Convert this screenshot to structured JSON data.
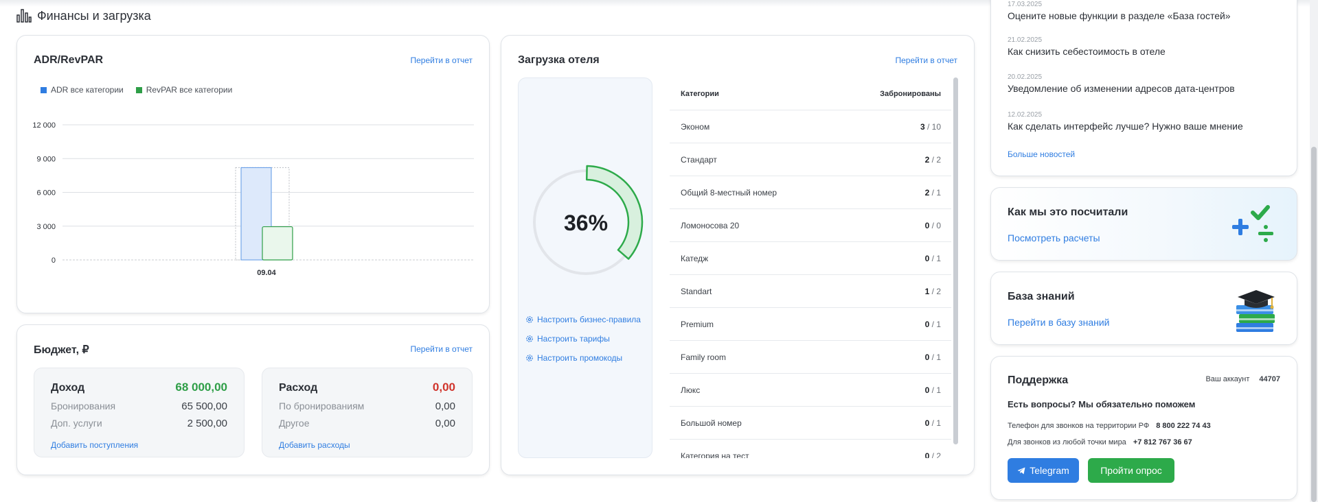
{
  "section": {
    "title": "Финансы и загрузка",
    "icon": "bar-chart-icon"
  },
  "adr": {
    "title": "ADR/RevPAR",
    "link": "Перейти в отчет",
    "legend": [
      {
        "label": "ADR все категории",
        "color": "#2f7de1"
      },
      {
        "label": "RevPAR все категории",
        "color": "#2e9e47"
      }
    ]
  },
  "chart_data": {
    "type": "bar",
    "title": "ADR/RevPAR",
    "categories": [
      "09.04"
    ],
    "series": [
      {
        "name": "ADR все категории",
        "values": [
          8200
        ],
        "color": "#2f7de1"
      },
      {
        "name": "RevPAR все категории",
        "values": [
          2950
        ],
        "color": "#2e9e47"
      }
    ],
    "y_ticks": [
      "0",
      "3 000",
      "6 000",
      "9 000",
      "12 000"
    ],
    "ylim": [
      0,
      12000
    ],
    "grid": true,
    "legend": "top-left"
  },
  "budget": {
    "title": "Бюджет, ₽",
    "link": "Перейти в отчет",
    "income": {
      "title": "Доход",
      "total": "68 000,00",
      "rows": [
        {
          "label": "Бронирования",
          "value": "65 500,00"
        },
        {
          "label": "Доп. услуги",
          "value": "2 500,00"
        }
      ],
      "link": "Добавить поступления",
      "color": "#2e9e47"
    },
    "expense": {
      "title": "Расход",
      "total": "0,00",
      "rows": [
        {
          "label": "По бронированиям",
          "value": "0,00"
        },
        {
          "label": "Другое",
          "value": "0,00"
        }
      ],
      "link": "Добавить расходы",
      "color": "#d0342c"
    }
  },
  "occupancy": {
    "title": "Загрузка отеля",
    "link": "Перейти в отчет",
    "percent": 36,
    "percent_label": "36%",
    "config_links": [
      "Настроить бизнес-правила",
      "Настроить тарифы",
      "Настроить промокоды"
    ],
    "columns": [
      "Категории",
      "Забронированы"
    ],
    "rows": [
      {
        "name": "Эконом",
        "booked": "3",
        "total": "/ 10"
      },
      {
        "name": "Стандарт",
        "booked": "2",
        "total": "/ 2"
      },
      {
        "name": "Общий 8-местный номер",
        "booked": "2",
        "total": "/ 1"
      },
      {
        "name": "Ломоносова 20",
        "booked": "0",
        "total": "/ 0"
      },
      {
        "name": "Катедж",
        "booked": "0",
        "total": "/ 1"
      },
      {
        "name": "Standart",
        "booked": "1",
        "total": "/ 2"
      },
      {
        "name": "Premium",
        "booked": "0",
        "total": "/ 1"
      },
      {
        "name": "Family room",
        "booked": "0",
        "total": "/ 1"
      },
      {
        "name": "Люкс",
        "booked": "0",
        "total": "/ 1"
      },
      {
        "name": "Большой номер",
        "booked": "0",
        "total": "/ 1"
      },
      {
        "name": "Категория на тест",
        "booked": "0",
        "total": "/ 2"
      }
    ]
  },
  "news": {
    "items": [
      {
        "date": "17.03.2025",
        "title": "Оцените новые функции в разделе «База гостей»"
      },
      {
        "date": "21.02.2025",
        "title": "Как снизить себестоимость в отеле"
      },
      {
        "date": "20.02.2025",
        "title": "Уведомление об изменении адресов дата-центров"
      },
      {
        "date": "12.02.2025",
        "title": "Как сделать интерфейс лучше? Нужно ваше мнение"
      }
    ],
    "more": "Больше новостей"
  },
  "how": {
    "title": "Как мы это посчитали",
    "link": "Посмотреть расчеты",
    "icon": "math-symbols-icon"
  },
  "kb": {
    "title": "База знаний",
    "link": "Перейти в базу знаний",
    "icon": "books-graduation-cap-icon"
  },
  "support": {
    "title": "Поддержка",
    "account_label": "Ваш аккаунт",
    "account_id": "44707",
    "question": "Есть вопросы? Мы обязательно поможем",
    "phone_rf_label": "Телефон для звонков на территории РФ",
    "phone_rf": "8 800 222 74 43",
    "phone_world_label": "Для звонков из любой точки мира",
    "phone_world": "+7 812 767 36 67",
    "telegram": "Telegram",
    "poll": "Пройти опрос"
  }
}
